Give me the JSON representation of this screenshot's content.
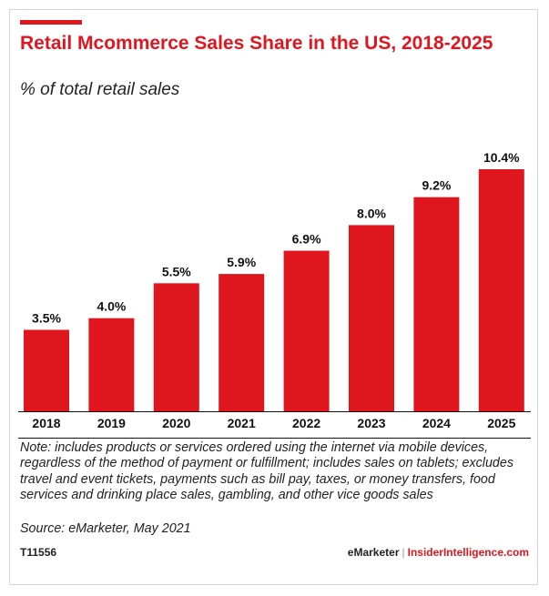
{
  "header": {
    "title": "Retail Mcommerce Sales Share in the US, 2018-2025",
    "subtitle": "% of total retail sales"
  },
  "chart_data": {
    "type": "bar",
    "title": "Retail Mcommerce Sales Share in the US, 2018-2025",
    "subtitle": "% of total retail sales",
    "categories": [
      "2018",
      "2019",
      "2020",
      "2021",
      "2022",
      "2023",
      "2024",
      "2025"
    ],
    "values": [
      3.5,
      4.0,
      5.5,
      5.9,
      6.9,
      8.0,
      9.2,
      10.4
    ],
    "value_labels": [
      "3.5%",
      "4.0%",
      "5.5%",
      "5.9%",
      "6.9%",
      "8.0%",
      "9.2%",
      "10.4%"
    ],
    "xlabel": "",
    "ylabel": "",
    "ylim": [
      0,
      10.4
    ],
    "grid": false,
    "bar_color": "#e0161f"
  },
  "footer": {
    "note": "Note: includes products or services ordered using the internet via mobile devices, regardless of the method of payment or fulfillment; includes sales on tablets; excludes travel and event tickets, payments such as bill pay, taxes, or money transfers, food services and drinking place sales, gambling, and other vice goods sales",
    "source": "Source: eMarketer, May 2021",
    "chart_id": "T11556",
    "brand_left": "eMarketer",
    "brand_sep": "|",
    "brand_right": "InsiderIntelligence.com"
  },
  "colors": {
    "accent": "#e0161f",
    "text": "#222222"
  }
}
